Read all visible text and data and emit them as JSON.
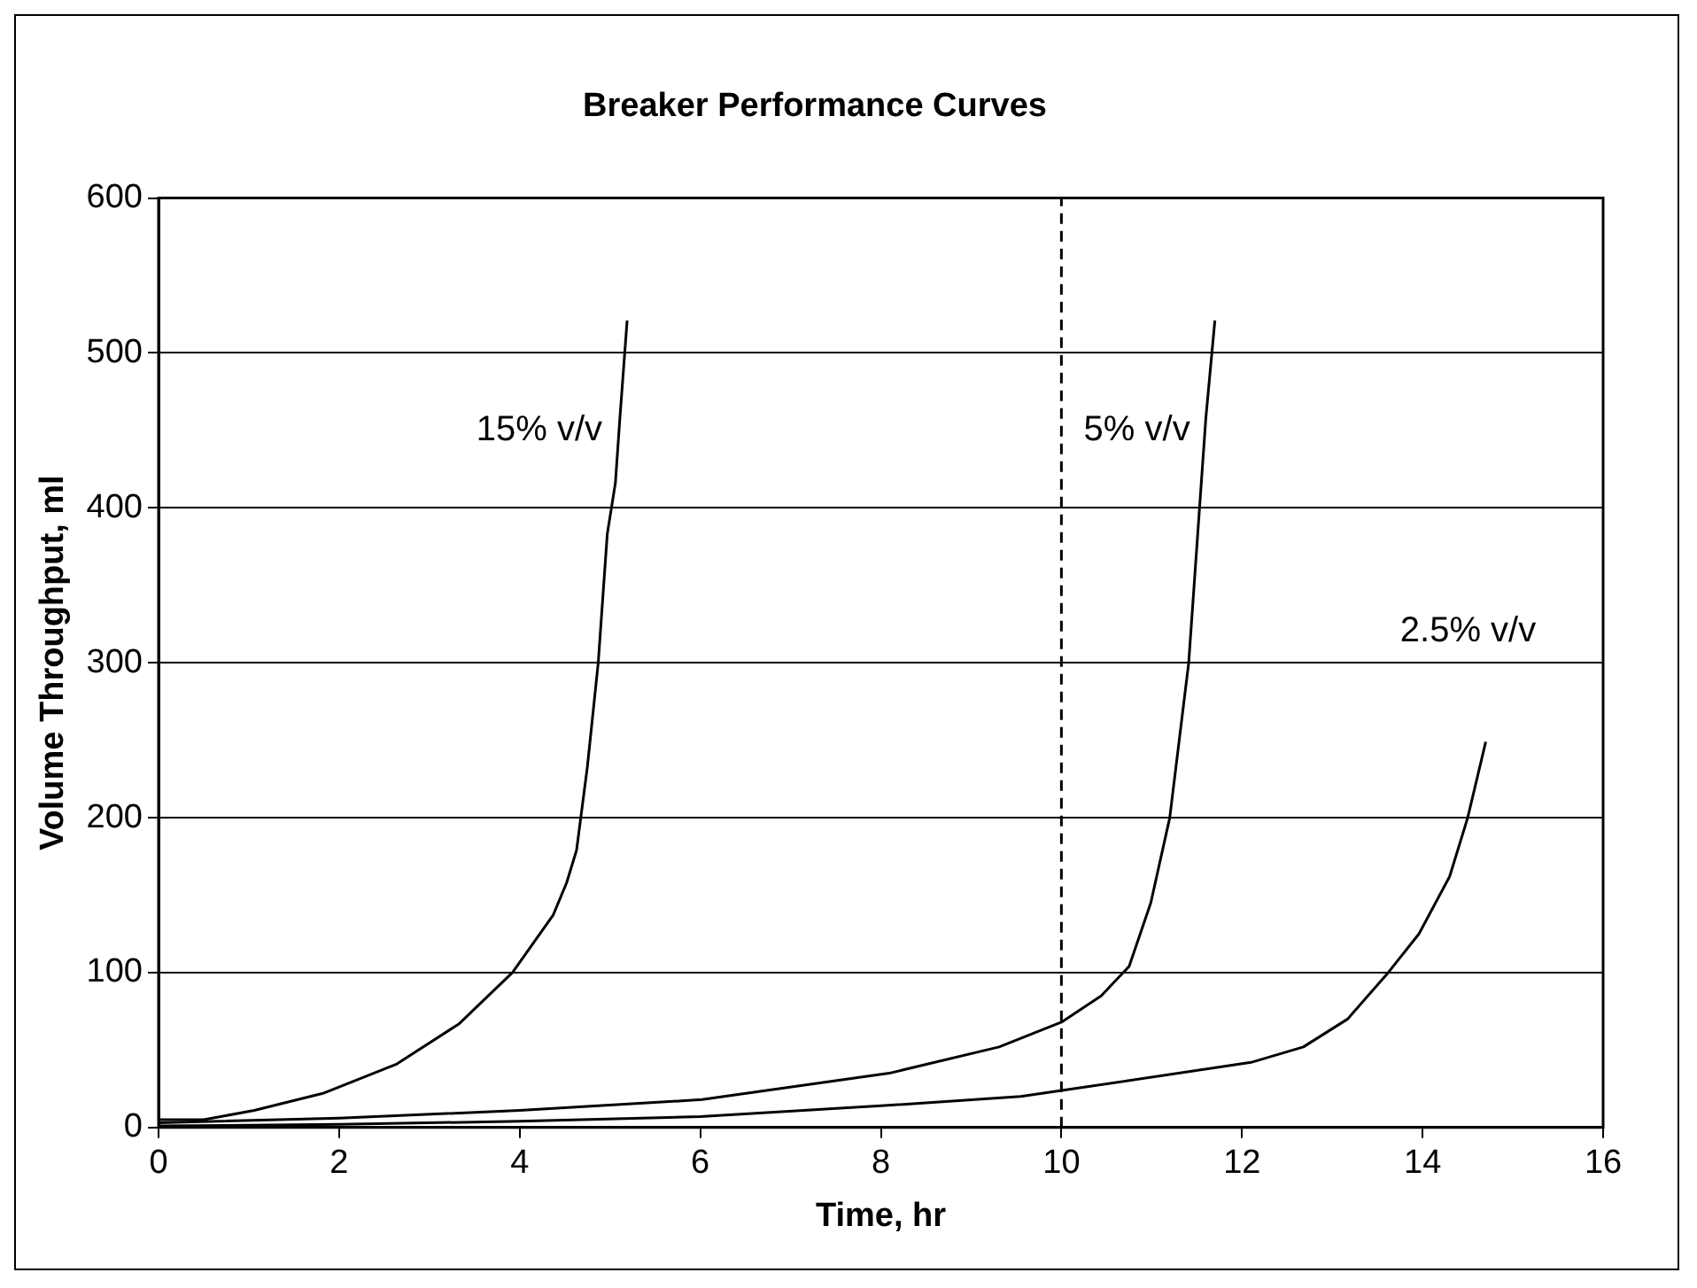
{
  "chart_data": {
    "type": "line",
    "title": "Breaker Performance Curves",
    "xlabel": "Time, hr",
    "ylabel": "Volume Throughput, ml",
    "xlim": [
      0,
      16
    ],
    "xticks": [
      0,
      2,
      4,
      6,
      8,
      10,
      12,
      14,
      16
    ],
    "ylim": [
      0,
      600
    ],
    "yticks": [
      0,
      100,
      200,
      300,
      400,
      500,
      600
    ],
    "grid": "y",
    "legend": false,
    "marker": "none",
    "line_style": "solid",
    "series": [
      {
        "name": "15% v/v",
        "color": "#000000",
        "x": [
          0,
          0.5,
          1.06,
          1.82,
          2.64,
          3.33,
          3.92,
          4.37,
          4.52,
          4.63,
          4.75,
          4.87,
          4.97,
          5.06,
          5.11,
          5.19
        ],
        "values": [
          5,
          5,
          11,
          22,
          41,
          67,
          100,
          137,
          158,
          179,
          233,
          300,
          383,
          416,
          458,
          521
        ]
      },
      {
        "name": "5% v/v",
        "color": "#000000",
        "x": [
          0,
          2,
          4,
          6.02,
          8.09,
          9.31,
          10.0,
          10.44,
          10.75,
          10.99,
          11.2,
          11.41,
          11.53,
          11.6,
          11.7
        ],
        "values": [
          3,
          6,
          11,
          18,
          35,
          52,
          68,
          85,
          104,
          145,
          200,
          300,
          400,
          458,
          521
        ]
      },
      {
        "name": "2.5% v/v",
        "color": "#000000",
        "x": [
          0,
          2,
          4,
          6,
          8,
          9.55,
          12.1,
          12.68,
          13.17,
          13.62,
          13.96,
          14.3,
          14.5,
          14.7
        ],
        "values": [
          1,
          2,
          4,
          7,
          14,
          20,
          42,
          52,
          70,
          100,
          125,
          162,
          200,
          249
        ]
      }
    ],
    "ref_lines": [
      {
        "axis": "x",
        "value": 10,
        "color": "#000000",
        "line_style": "dashed"
      }
    ]
  }
}
